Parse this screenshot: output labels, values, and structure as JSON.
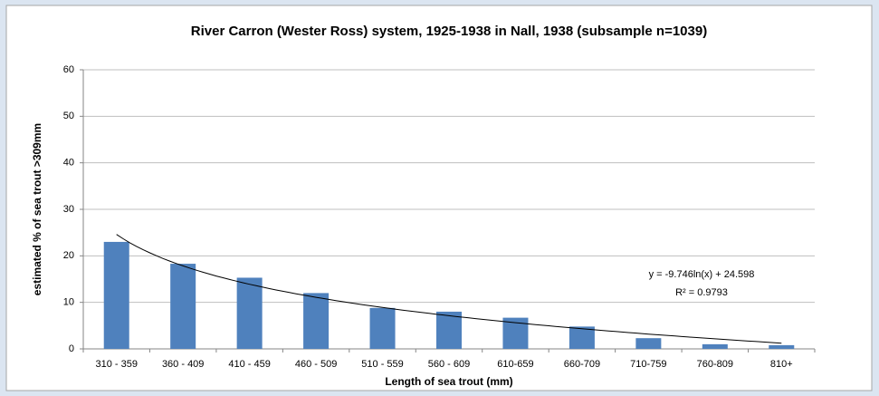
{
  "chart_data": {
    "type": "bar",
    "title": "River Carron (Wester Ross) system, 1925-1938 in Nall, 1938 (subsample n=1039)",
    "x_label": "Length of sea trout (mm)",
    "y_label": "estimated % of sea trout >309mm",
    "categories": [
      "310 - 359",
      "360 - 409",
      "410 - 459",
      "460 - 509",
      "510 - 559",
      "560 - 609",
      "610-659",
      "660-709",
      "710-759",
      "760-809",
      "810+"
    ],
    "values": [
      23,
      18.3,
      15.3,
      12,
      8.8,
      8,
      6.7,
      4.8,
      2.3,
      1,
      0.8
    ],
    "color": "#4f81bd",
    "ylim": [
      0,
      60
    ],
    "yticks": [
      0,
      10,
      20,
      30,
      40,
      50,
      60
    ],
    "grid": true,
    "trendline": {
      "type": "log",
      "a": -9.746,
      "b": 24.598,
      "equation": "y = -9.746ln(x) + 24.598",
      "r2": "R² = 0.9793"
    }
  }
}
